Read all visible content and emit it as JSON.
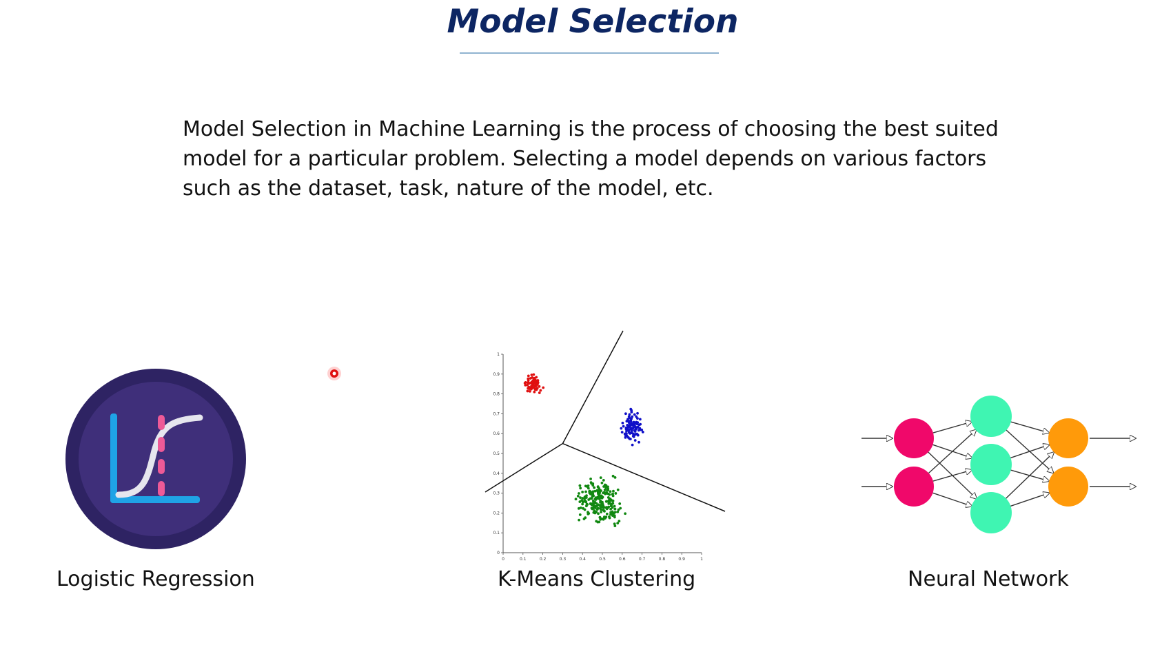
{
  "slide": {
    "title": "Model Selection",
    "description": "Model Selection in Machine Learning is the process of choosing the best suited model for a particular problem. Selecting a model depends on various factors such as the dataset, task, nature of the model, etc."
  },
  "models": [
    {
      "caption": "Logistic Regression",
      "icon": "logistic-regression-icon"
    },
    {
      "caption": "K-Means Clustering",
      "icon": "kmeans-scatter-plot"
    },
    {
      "caption": "Neural Network",
      "icon": "neural-network-diagram"
    }
  ],
  "kmeans_plot": {
    "x_ticks": [
      "0",
      "0.1",
      "0.2",
      "0.3",
      "0.4",
      "0.5",
      "0.6",
      "0.7",
      "0.8",
      "0.9",
      "1"
    ],
    "y_ticks": [
      "0",
      "0.1",
      "0.2",
      "0.3",
      "0.4",
      "0.5",
      "0.6",
      "0.7",
      "0.8",
      "0.9",
      "1"
    ],
    "cluster_colors": [
      "#e01010",
      "#1010c8",
      "#118811"
    ]
  },
  "colors": {
    "title": "#0d2663",
    "lr_circle_outer": "#2e2363",
    "lr_circle_inner": "#3f2f7a",
    "nn_input": "#f0086a",
    "nn_hidden": "#3ff5b2",
    "nn_output": "#ff9a0a"
  }
}
